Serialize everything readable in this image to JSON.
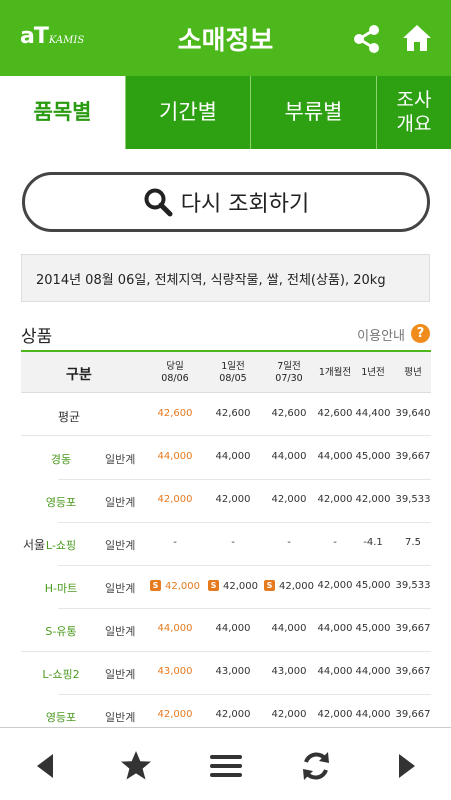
{
  "header": {
    "logo_main": "aT",
    "logo_sub": "KAMIS",
    "title": "소매정보"
  },
  "tabs": [
    {
      "label": "품목별"
    },
    {
      "label": "기간별"
    },
    {
      "label": "부류별"
    },
    {
      "label": "조사\n개요"
    }
  ],
  "research_label": "다시 조회하기",
  "query_text": "2014년 08월 06일,  전체지역, 식량작물, 쌀, 전체(상품), 20kg",
  "section": {
    "title": "상품",
    "guide": "이용안내",
    "help_icon": "?"
  },
  "table": {
    "headers": {
      "category": "구분",
      "c1_top": "당일",
      "c1_bottom": "08/06",
      "c2_top": "1일전",
      "c2_bottom": "08/05",
      "c3_top": "7일전",
      "c3_bottom": "07/30",
      "c4": "1개월전",
      "c5": "1년전",
      "c6": "평년"
    },
    "region": "서울",
    "average_label": "평균",
    "average": [
      "42,600",
      "42,600",
      "42,600",
      "42,600",
      "44,400",
      "39,640"
    ],
    "rows": [
      {
        "store": "경동",
        "grade": "일반계",
        "values": [
          "44,000",
          "44,000",
          "44,000",
          "44,000",
          "45,000",
          "39,667"
        ]
      },
      {
        "store": "영등포",
        "grade": "일반계",
        "values": [
          "42,000",
          "42,000",
          "42,000",
          "42,000",
          "42,000",
          "39,533"
        ]
      },
      {
        "store": "L-쇼핑",
        "grade": "일반계",
        "values": [
          "-",
          "-",
          "-",
          "-",
          "-4.1",
          "7.5"
        ]
      },
      {
        "store": "H-마트",
        "grade": "일반계",
        "values": [
          "42,000",
          "42,000",
          "42,000",
          "42,000",
          "45,000",
          "39,533"
        ]
      },
      {
        "store": "S-유통",
        "grade": "일반계",
        "values": [
          "44,000",
          "44,000",
          "44,000",
          "44,000",
          "45,000",
          "39,667"
        ]
      },
      {
        "store": "L-쇼핑2",
        "grade": "일반계",
        "values": [
          "43,000",
          "43,000",
          "43,000",
          "44,000",
          "44,000",
          "39,667"
        ]
      },
      {
        "store": "영등포",
        "grade": "일반계",
        "values": [
          "42,000",
          "42,000",
          "42,000",
          "42,000",
          "44,000",
          "39,667"
        ]
      }
    ],
    "sale_badge": "S"
  },
  "colors": {
    "brand_green": "#4cb81c",
    "tab_green": "#2ea112",
    "price_orange": "#e67a1e"
  },
  "icons": [
    "share-icon",
    "home-icon",
    "search-icon",
    "back-icon",
    "star-icon",
    "menu-icon",
    "refresh-icon",
    "forward-icon"
  ]
}
